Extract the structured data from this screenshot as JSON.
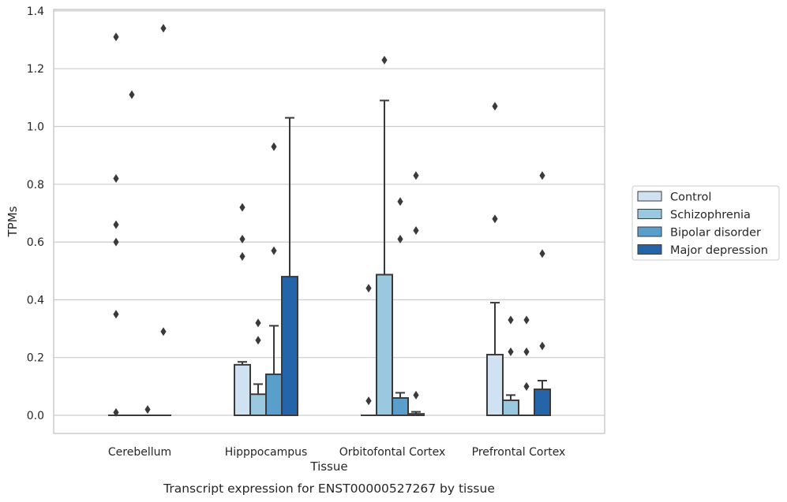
{
  "caption": "Transcript expression for ENST00000527267 by tissue",
  "chart_data": {
    "type": "box",
    "xlabel": "Tissue",
    "ylabel": "TPMs",
    "ylim": [
      -0.06,
      1.41
    ],
    "yticks": [
      0.0,
      0.2,
      0.4,
      0.6,
      0.8,
      1.0,
      1.2,
      1.4
    ],
    "ytick_labels": [
      "0.0",
      "0.2",
      "0.4",
      "0.6",
      "0.8",
      "1.0",
      "1.2",
      "1.4"
    ],
    "grid": "horizontal",
    "legend_position": "right",
    "categories": [
      "Cerebellum",
      "Hipppocampus",
      "Orbitofontal Cortex",
      "Prefrontal Cortex"
    ],
    "series": [
      {
        "name": "Control",
        "color": "#d0e1f2",
        "boxes": [
          {
            "q1": 0,
            "median": 0,
            "q3": 0,
            "whisker_low": 0,
            "whisker_high": 0,
            "outliers": [
              0.01,
              0.35,
              0.6,
              0.66,
              0.82,
              1.31
            ]
          },
          {
            "q1": 0,
            "median": 0,
            "q3": 0.175,
            "whisker_low": 0,
            "whisker_high": 0.185,
            "outliers": [
              0.55,
              0.61,
              0.72
            ]
          },
          {
            "q1": 0,
            "median": 0,
            "q3": 0,
            "whisker_low": 0,
            "whisker_high": 0,
            "outliers": [
              0.05,
              0.44
            ]
          },
          {
            "q1": 0,
            "median": 0,
            "q3": 0.21,
            "whisker_low": 0,
            "whisker_high": 0.39,
            "outliers": [
              0.68,
              1.07
            ]
          }
        ]
      },
      {
        "name": "Schizophrenia",
        "color": "#9ac8e0",
        "boxes": [
          {
            "q1": 0,
            "median": 0,
            "q3": 0,
            "whisker_low": 0,
            "whisker_high": 0,
            "outliers": [
              1.11
            ]
          },
          {
            "q1": 0,
            "median": 0,
            "q3": 0.073,
            "whisker_low": 0,
            "whisker_high": 0.108,
            "outliers": [
              0.26,
              0.32
            ]
          },
          {
            "q1": 0,
            "median": 0,
            "q3": 0.487,
            "whisker_low": 0,
            "whisker_high": 1.09,
            "outliers": [
              1.23
            ]
          },
          {
            "q1": 0,
            "median": 0,
            "q3": 0.052,
            "whisker_low": 0,
            "whisker_high": 0.07,
            "outliers": [
              0.22,
              0.33
            ]
          }
        ]
      },
      {
        "name": "Bipolar disorder",
        "color": "#5a9fcc",
        "boxes": [
          {
            "q1": 0,
            "median": 0,
            "q3": 0,
            "whisker_low": 0,
            "whisker_high": 0,
            "outliers": [
              0.02
            ]
          },
          {
            "q1": 0,
            "median": 0,
            "q3": 0.142,
            "whisker_low": 0,
            "whisker_high": 0.31,
            "outliers": [
              0.57,
              0.93
            ]
          },
          {
            "q1": 0,
            "median": 0,
            "q3": 0.06,
            "whisker_low": 0,
            "whisker_high": 0.078,
            "outliers": [
              0.61,
              0.74
            ]
          },
          {
            "q1": 0,
            "median": 0,
            "q3": 0,
            "whisker_low": 0,
            "whisker_high": 0,
            "outliers": [
              0.1,
              0.22,
              0.33
            ]
          }
        ]
      },
      {
        "name": "Major depression",
        "color": "#2464a8",
        "boxes": [
          {
            "q1": 0,
            "median": 0,
            "q3": 0,
            "whisker_low": 0,
            "whisker_high": 0,
            "outliers": [
              0.29,
              1.34
            ]
          },
          {
            "q1": 0,
            "median": 0,
            "q3": 0.48,
            "whisker_low": 0,
            "whisker_high": 1.03,
            "outliers": []
          },
          {
            "q1": 0,
            "median": 0,
            "q3": 0.005,
            "whisker_low": 0,
            "whisker_high": 0.012,
            "outliers": [
              0.07,
              0.64,
              0.83
            ]
          },
          {
            "q1": 0,
            "median": 0,
            "q3": 0.09,
            "whisker_low": 0,
            "whisker_high": 0.12,
            "outliers": [
              0.24,
              0.56,
              0.83
            ]
          }
        ]
      }
    ]
  }
}
